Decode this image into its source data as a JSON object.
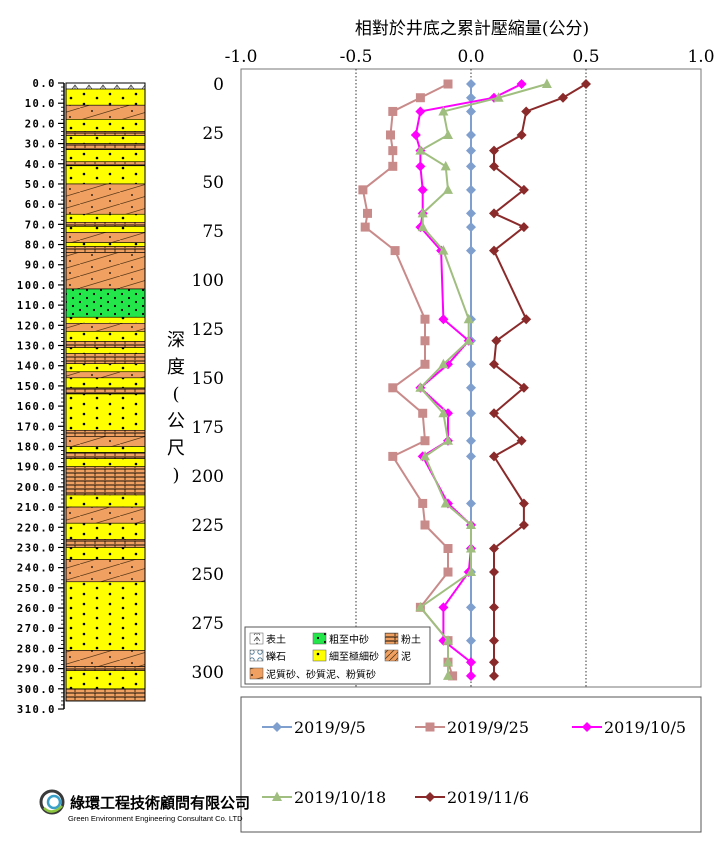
{
  "chart_data": {
    "type": "line",
    "title": "相對於井底之累計壓縮量(公分)",
    "ylabel": "深度(公尺)",
    "xlabel": "",
    "xlim": [
      -1.0,
      1.0
    ],
    "ylim": [
      0,
      305
    ],
    "x_ticks": [
      "-1.0",
      "-0.5",
      "0.0",
      "0.5",
      "1.0"
    ],
    "x_tick_values": [
      -1.0,
      -0.5,
      0.0,
      0.5,
      1.0
    ],
    "y_ticks": [
      "0",
      "25",
      "50",
      "75",
      "100",
      "125",
      "150",
      "175",
      "200",
      "225",
      "250",
      "275",
      "300"
    ],
    "y_tick_values": [
      0,
      25,
      50,
      75,
      100,
      125,
      150,
      175,
      200,
      225,
      250,
      275,
      300
    ],
    "y_reversed": true,
    "grid": "vertical-dotted",
    "legend_position": "bottom",
    "depths": [
      0,
      7,
      14,
      26,
      34,
      42,
      54,
      66,
      73,
      85,
      120,
      131,
      143,
      155,
      168,
      182,
      190,
      214,
      225,
      237,
      249,
      267,
      284,
      295,
      302
    ],
    "series": [
      {
        "name": "2019/9/5",
        "color": "#7f9fcf",
        "marker": "diamond",
        "values": [
          0,
          0,
          0,
          0,
          0,
          0,
          0,
          0,
          0,
          0,
          0,
          0,
          0,
          0,
          0,
          0,
          0,
          0,
          0,
          0,
          0,
          0,
          0,
          0,
          0
        ]
      },
      {
        "name": "2019/9/25",
        "color": "#c98a8a",
        "marker": "square",
        "values": [
          -0.1,
          -0.22,
          -0.34,
          -0.35,
          -0.34,
          -0.34,
          -0.47,
          -0.45,
          -0.46,
          -0.33,
          -0.2,
          -0.2,
          -0.2,
          -0.34,
          -0.21,
          -0.2,
          -0.34,
          -0.21,
          -0.2,
          -0.1,
          -0.1,
          -0.22,
          -0.1,
          -0.1,
          -0.08
        ]
      },
      {
        "name": "2019/10/5",
        "color": "#ff00ff",
        "marker": "diamond",
        "values": [
          0.22,
          0.1,
          -0.22,
          -0.24,
          -0.22,
          -0.22,
          -0.21,
          -0.21,
          -0.22,
          -0.13,
          -0.12,
          -0.01,
          -0.1,
          -0.22,
          -0.1,
          -0.1,
          -0.21,
          -0.1,
          0,
          0,
          -0.01,
          -0.12,
          -0.12,
          0,
          0
        ]
      },
      {
        "name": "2019/10/18",
        "color": "#a0be7f",
        "marker": "triangle",
        "values": [
          0.33,
          0.12,
          -0.12,
          -0.1,
          -0.22,
          -0.11,
          -0.1,
          -0.21,
          -0.21,
          -0.12,
          -0.01,
          -0.01,
          -0.12,
          -0.22,
          -0.12,
          -0.1,
          -0.2,
          -0.11,
          0,
          0,
          0,
          -0.22,
          -0.1,
          -0.1,
          -0.1
        ]
      },
      {
        "name": "2019/11/6",
        "color": "#8b2a2a",
        "marker": "diamond",
        "values": [
          0.5,
          0.4,
          0.24,
          0.22,
          0.1,
          0.1,
          0.23,
          0.1,
          0.23,
          0.1,
          0.24,
          0.11,
          0.1,
          0.23,
          0.1,
          0.22,
          0.1,
          0.23,
          0.23,
          0.1,
          0.1,
          0.1,
          0.1,
          0.1,
          0.1
        ]
      }
    ]
  },
  "stratigraphy": {
    "depth_ticks": [
      "0.0",
      "10.0",
      "20.0",
      "30.0",
      "40.0",
      "50.0",
      "60.0",
      "70.0",
      "80.0",
      "90.0",
      "100.0",
      "110.0",
      "120.0",
      "130.0",
      "140.0",
      "150.0",
      "160.0",
      "170.0",
      "180.0",
      "190.0",
      "200.0",
      "210.0",
      "220.0",
      "230.0",
      "240.0",
      "250.0",
      "260.0",
      "270.0",
      "280.0",
      "290.0",
      "300.0",
      "310.0"
    ],
    "layers": [
      {
        "top": 0,
        "bottom": 3,
        "type": "topsoil"
      },
      {
        "top": 3,
        "bottom": 11,
        "type": "fine-sand"
      },
      {
        "top": 11,
        "bottom": 18,
        "type": "silty-sand"
      },
      {
        "top": 18,
        "bottom": 24,
        "type": "fine-sand"
      },
      {
        "top": 24,
        "bottom": 26,
        "type": "silt"
      },
      {
        "top": 26,
        "bottom": 30,
        "type": "fine-sand"
      },
      {
        "top": 30,
        "bottom": 33,
        "type": "silt"
      },
      {
        "top": 33,
        "bottom": 39,
        "type": "fine-sand"
      },
      {
        "top": 39,
        "bottom": 41,
        "type": "silt"
      },
      {
        "top": 41,
        "bottom": 50,
        "type": "fine-sand"
      },
      {
        "top": 50,
        "bottom": 65,
        "type": "silty-sand"
      },
      {
        "top": 65,
        "bottom": 69,
        "type": "fine-sand"
      },
      {
        "top": 69,
        "bottom": 71,
        "type": "silt"
      },
      {
        "top": 71,
        "bottom": 74,
        "type": "fine-sand"
      },
      {
        "top": 74,
        "bottom": 79,
        "type": "silty-sand"
      },
      {
        "top": 79,
        "bottom": 81,
        "type": "fine-sand"
      },
      {
        "top": 81,
        "bottom": 84,
        "type": "silt"
      },
      {
        "top": 84,
        "bottom": 102,
        "type": "silty-sand"
      },
      {
        "top": 102,
        "bottom": 116,
        "type": "coarse-sand"
      },
      {
        "top": 116,
        "bottom": 119,
        "type": "fine-sand"
      },
      {
        "top": 119,
        "bottom": 123,
        "type": "silty-sand"
      },
      {
        "top": 123,
        "bottom": 128,
        "type": "fine-sand"
      },
      {
        "top": 128,
        "bottom": 131,
        "type": "silt"
      },
      {
        "top": 131,
        "bottom": 134,
        "type": "fine-sand"
      },
      {
        "top": 134,
        "bottom": 139,
        "type": "silt"
      },
      {
        "top": 139,
        "bottom": 143,
        "type": "fine-sand"
      },
      {
        "top": 143,
        "bottom": 146,
        "type": "silty-sand"
      },
      {
        "top": 146,
        "bottom": 151,
        "type": "fine-sand"
      },
      {
        "top": 151,
        "bottom": 154,
        "type": "silt"
      },
      {
        "top": 154,
        "bottom": 172,
        "type": "fine-sand"
      },
      {
        "top": 172,
        "bottom": 175,
        "type": "silt"
      },
      {
        "top": 175,
        "bottom": 180,
        "type": "silty-sand"
      },
      {
        "top": 180,
        "bottom": 183,
        "type": "fine-sand"
      },
      {
        "top": 183,
        "bottom": 186,
        "type": "silt"
      },
      {
        "top": 186,
        "bottom": 190,
        "type": "fine-sand"
      },
      {
        "top": 190,
        "bottom": 204,
        "type": "silt"
      },
      {
        "top": 204,
        "bottom": 210,
        "type": "fine-sand"
      },
      {
        "top": 210,
        "bottom": 218,
        "type": "silty-sand"
      },
      {
        "top": 218,
        "bottom": 226,
        "type": "fine-sand"
      },
      {
        "top": 226,
        "bottom": 230,
        "type": "silt"
      },
      {
        "top": 230,
        "bottom": 236,
        "type": "fine-sand"
      },
      {
        "top": 236,
        "bottom": 247,
        "type": "silty-sand"
      },
      {
        "top": 247,
        "bottom": 281,
        "type": "fine-sand"
      },
      {
        "top": 281,
        "bottom": 289,
        "type": "silty-sand"
      },
      {
        "top": 289,
        "bottom": 291,
        "type": "silt"
      },
      {
        "top": 291,
        "bottom": 300,
        "type": "fine-sand"
      },
      {
        "top": 300,
        "bottom": 306,
        "type": "silt"
      }
    ]
  },
  "soil_legend": {
    "items": [
      {
        "key": "topsoil",
        "label": "表土"
      },
      {
        "key": "coarse-sand",
        "label": "粗至中砂"
      },
      {
        "key": "silt",
        "label": "粉土"
      },
      {
        "key": "gravel",
        "label": "礫石"
      },
      {
        "key": "fine-sand",
        "label": "細至極細砂"
      },
      {
        "key": "clay",
        "label": "泥"
      },
      {
        "key": "silty-sand",
        "label": "泥質砂、砂質泥、粉質砂"
      }
    ],
    "colors": {
      "topsoil": "#ffffff",
      "coarse-sand": "#22e64a",
      "silt": "#f0a060",
      "gravel": "#ffffff",
      "fine-sand": "#ffff00",
      "clay": "#f0a060",
      "silty-sand": "#f0a060"
    }
  },
  "company": {
    "name": "綠環工程技術顧問有限公司",
    "name_en": "Green Environment Engineering Consultant Co. LTD"
  }
}
